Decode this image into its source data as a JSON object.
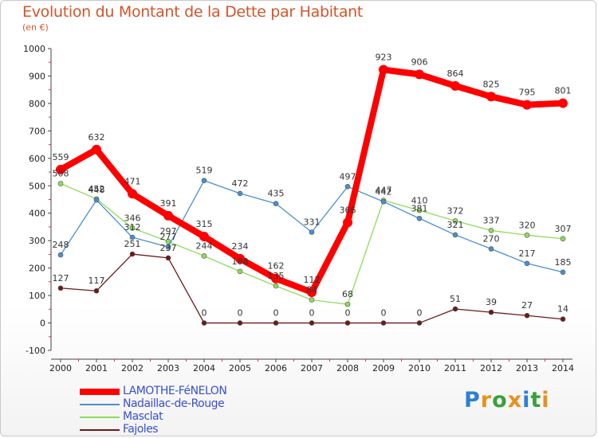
{
  "title": "Evolution du Montant de la Dette par Habitant",
  "unit": "(en €)",
  "brand": "Proxiti",
  "chart_data": {
    "type": "line",
    "x": [
      "2000",
      "2001",
      "2002",
      "2003",
      "2004",
      "2005",
      "2006",
      "2007",
      "2008",
      "2009",
      "2010",
      "2011",
      "2012",
      "2013",
      "2014"
    ],
    "ylim": [
      -100,
      1000
    ],
    "yticks": [
      -100,
      0,
      100,
      200,
      300,
      400,
      500,
      600,
      700,
      800,
      900,
      1000
    ],
    "grid": false,
    "legend_position": "bottom-left",
    "series": [
      {
        "name": "LAMOTHE-FéNELON",
        "color": "#ff0000",
        "values": [
          559,
          632,
          471,
          391,
          315,
          234,
          162,
          112,
          366,
          923,
          906,
          864,
          825,
          795,
          801
        ]
      },
      {
        "name": "Nadaillac-de-Rouge",
        "color": "#4a8fd0",
        "values": [
          248,
          448,
          312,
          277,
          519,
          472,
          435,
          331,
          497,
          442,
          381,
          321,
          270,
          217,
          185
        ]
      },
      {
        "name": "Masclat",
        "color": "#8edc5a",
        "values": [
          508,
          452,
          346,
          297,
          244,
          188,
          135,
          84,
          68,
          447,
          410,
          372,
          337,
          320,
          307
        ]
      },
      {
        "name": "Fajoles",
        "color": "#6b1a1a",
        "values": [
          127,
          117,
          251,
          237,
          0,
          0,
          0,
          0,
          0,
          0,
          0,
          51,
          39,
          27,
          14
        ]
      }
    ]
  }
}
